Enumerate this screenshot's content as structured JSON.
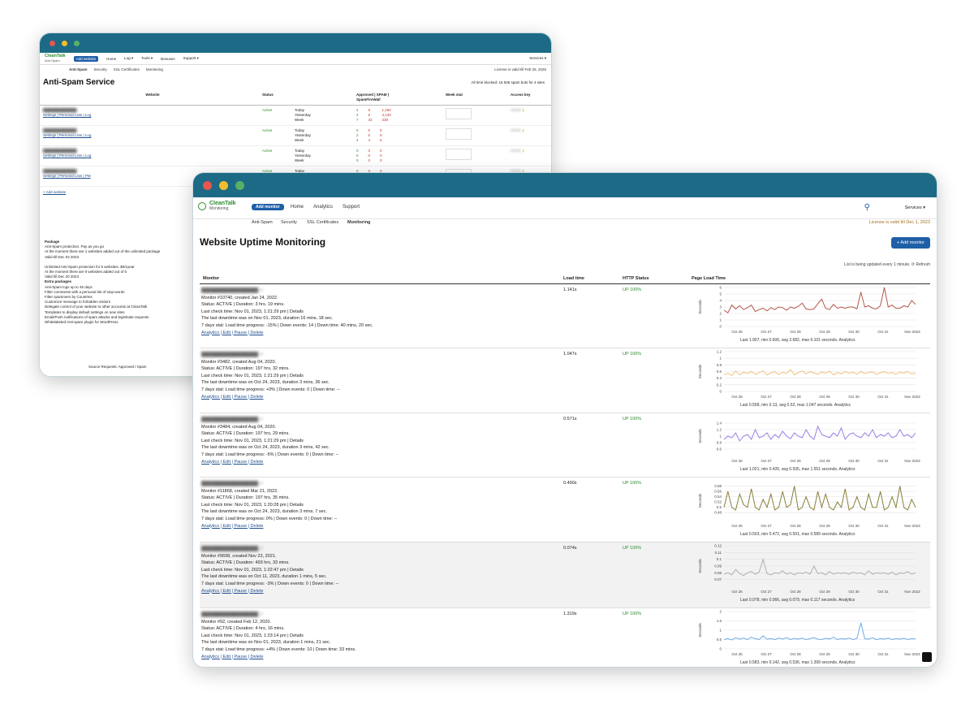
{
  "back_window": {
    "logo": "CleanTalk",
    "logo_sub": "Anti-Spam",
    "add_button": "Add website",
    "nav": [
      "Home",
      "Log ▾",
      "Tools ▾",
      "Bonuses",
      "Support ▾"
    ],
    "services": "Services ▾",
    "subnav": [
      "Anti-Spam",
      "Security",
      "SSL Certificates",
      "Monitoring"
    ],
    "license": "License is valid till Feb 25, 2025",
    "title": "Anti-Spam Service",
    "stat": "All time blocked: 16 536 spam bots for 4 sites",
    "columns": [
      "Website",
      "Status",
      "",
      "Approved",
      "SPAM",
      "SpamFireWall",
      "Week stat",
      "Access key"
    ],
    "rows": [
      {
        "site": "",
        "status": "Active",
        "periods": [
          "Today",
          "Yesterday",
          "Week"
        ],
        "approved": [
          "4",
          "2",
          "7"
        ],
        "spam": [
          "5",
          "5",
          "33"
        ],
        "sfw": [
          "1,260",
          "3,130",
          "338"
        ],
        "links": "Settings | Personal Lists | Log"
      },
      {
        "site": "",
        "status": "Active",
        "periods": [
          "Today",
          "Yesterday",
          "Week"
        ],
        "approved": [
          "0",
          "2",
          "4"
        ],
        "spam": [
          "0",
          "6",
          "4"
        ],
        "sfw": [
          "0",
          "9",
          "6"
        ],
        "links": "Settings | Personal Lists | Log"
      },
      {
        "site": "",
        "status": "Active",
        "periods": [
          "Today",
          "Yesterday",
          "Week"
        ],
        "approved": [
          "0",
          "0",
          "0"
        ],
        "spam": [
          "0",
          "0",
          "0"
        ],
        "sfw": [
          "0",
          "0",
          "0"
        ],
        "links": "Settings | Personal Lists | Log"
      },
      {
        "site": "",
        "status": "Active",
        "periods": [
          "Today",
          "Yesterday",
          "Week"
        ],
        "approved": [
          "0",
          "0",
          "0"
        ],
        "spam": [
          "0",
          "0",
          "0"
        ],
        "sfw": [
          "0",
          "0",
          "0"
        ],
        "links": "Settings | Personal Lists | PM"
      }
    ],
    "add_site": "+ Add website",
    "package_title": "Package",
    "package_lines": [
      "Anti-Spam protection. Pay as you go",
      "At the moment there are 1 websites added out of the unlimited package",
      "Valid till Dec 03 2023",
      "",
      "Unlimited Anti-Spam protection for 5 websites. $0/1year",
      "At the moment there are 0 websites added out of 5",
      "Valid till Dec 20 2023"
    ],
    "extra_title": "Extra packages",
    "extra_lines": [
      "Anti-Spam logs up to 45 days",
      "Filter comments with a personal list of stop-words",
      "Filter spammers by Countries",
      "Customize message to forbidden visitors",
      "Delegate control of your website to other accounts at CleanTalk",
      "Templates to display default settings on new sites",
      "Email/Push notifications of spam attacks and legitimate requests",
      "Whitelabeled Anti-spam plugin for WordPress"
    ],
    "footer": "Source Requests: Approved / Spam"
  },
  "front_window": {
    "logo": "CleanTalk",
    "logo_sub": "Monitoring",
    "add_button": "Add monitor",
    "nav": [
      "Home",
      "Analytics",
      "Support"
    ],
    "services": "Services ▾",
    "subnav": [
      "Anti-Spam",
      "Security",
      "SSL Certificates",
      "Monitoring"
    ],
    "license": "License is valid till Dec 1, 2023",
    "title": "Website Uptime Monitoring",
    "add_monitor": "+ Add monitor",
    "updated": "List is being updated every 1 minute. ⟳ Refresh",
    "columns": {
      "monitor": "Monitor",
      "load": "Load time",
      "http": "HTTP Status",
      "plt": "Page Load Time"
    },
    "colors": {
      "c1": "#b5574a",
      "c2": "#f2c07a",
      "c3": "#9d7ee6",
      "c4": "#8a7f3a",
      "c5": "#b0b0b0",
      "c6": "#6aace6",
      "accent": "#1c6a85"
    },
    "monitors": [
      {
        "url": "",
        "created": "Monitor #10740, created Jan 24, 2022.",
        "status": "Status: ACTIVE | Duration: 3 hrs, 19 mins.",
        "last": "Last check time: Nov 01, 2023, 1:21:29 pm | Details",
        "downtime": "The last downtime was on Nov 01, 2023, duration 16 mins, 18 sec.",
        "stat": "7 days stat: Load time progress: -15% | Down events: 14 | Down time: 40 mins, 20 sec.",
        "links": "Analytics | Edit | Pause | Delete",
        "load": "1.141s",
        "http": "UP 100%",
        "summary": "Last 1.907, min 0.606, avg 2.682, max 6.101 seconds. Analytics"
      },
      {
        "url": "",
        "created": "Monitor #3482, created Aug 04, 2020.",
        "status": "Status: ACTIVE | Duration: 197 hrs, 32 mins.",
        "last": "Last check time: Nov 01, 2023, 1:21:29 pm | Details",
        "downtime": "The last downtime was on Oct 24, 2023, duration 3 mins, 36 sec.",
        "stat": "7 days stat: Load time progress: +0% | Down events: 0 | Down time: --",
        "links": "Analytics | Edit | Pause | Delete",
        "load": "1.047s",
        "http": "UP 100%",
        "summary": "Last 0.558, min 0.13, avg 0.52, max 1.047 seconds. Analytics"
      },
      {
        "url": "",
        "created": "Monitor #3484, created Aug 04, 2020.",
        "status": "Status: ACTIVE | Duration: 197 hrs, 29 mins.",
        "last": "Last check time: Nov 01, 2023, 1:21:29 pm | Details",
        "downtime": "The last downtime was on Oct 24, 2023, duration 3 mins, 42 sec.",
        "stat": "7 days stat: Load time progress: -5% | Down events: 0 | Down time: --",
        "links": "Analytics | Edit | Pause | Delete",
        "load": "0.571s",
        "http": "UP 100%",
        "summary": "Last 1.021, min 0.426, avg 0.935, max 1.551 seconds. Analytics"
      },
      {
        "url": "",
        "created": "Monitor #11868, created Mar 21, 2022.",
        "status": "Status: ACTIVE | Duration: 197 hrs, 35 mins.",
        "last": "Last check time: Nov 01, 2023, 1:20:28 pm | Details",
        "downtime": "The last downtime was on Oct 24, 2023, duration 3 mins, 7 sec.",
        "stat": "7 days stat: Load time progress: 0% | Down events: 0 | Down time: --",
        "links": "Analytics | Edit | Pause | Delete",
        "load": "0.490s",
        "http": "UP 100%",
        "summary": "Last 0.503, min 0.472, avg 0.501, max 0.589 seconds. Analytics"
      },
      {
        "url": "",
        "created": "Monitor #9698, created Nov 23, 2021.",
        "status": "Status: ACTIVE | Duration: 493 hrs, 33 mins.",
        "last": "Last check time: Nov 01, 2023, 1:22:47 pm | Details",
        "downtime": "The last downtime was on Oct 11, 2023, duration 1 mins, 5 sec.",
        "stat": "7 days stat: Load time progress: -3% | Down events: 0 | Down time: --",
        "links": "Analytics | Edit | Pause | Delete",
        "load": "0.074s",
        "http": "UP 100%",
        "summary": "Last 0.078, min 0.066, avg 0.079, max 0.117 seconds. Analytics"
      },
      {
        "url": "",
        "created": "Monitor #92, created Feb 12, 2020.",
        "status": "Status: ACTIVE | Duration: 4 hrs, 16 mins.",
        "last": "Last check time: Nov 01, 2023, 1:23:14 pm | Details",
        "downtime": "The last downtime was on Nov 01, 2023, duration 1 mins, 21 sec.",
        "stat": "7 days stat: Load time progress: +4% | Down events: 10 | Down time: 33 mins.",
        "links": "Analytics | Edit | Pause | Delete",
        "load": "1.319s",
        "http": "UP 100%",
        "summary": "Last 0.583, min 0.142, avg 0.536, max 1.399 seconds. Analytics"
      }
    ],
    "chart_ticks_x": [
      "Oct 26",
      "Oct 27",
      "Oct 28",
      "Oct 29",
      "Oct 30",
      "Oct 31",
      "Nov 2023"
    ],
    "chart_ylabel": "Seconds"
  },
  "chart_data": [
    {
      "type": "line",
      "ylabel": "Seconds",
      "ylim": [
        0,
        6
      ],
      "yticks": [
        "0",
        "1",
        "2",
        "3",
        "4",
        "5",
        "6"
      ],
      "series": [
        {
          "values": [
            2.5,
            2.1,
            3.3,
            2.7,
            3.2,
            2.6,
            2.9,
            3.3,
            2.3,
            2.6,
            2.8,
            2.4,
            2.9,
            2.6,
            3.0,
            2.9,
            2.5,
            3.0,
            2.8,
            3.1,
            3.6,
            2.7,
            2.6,
            2.7,
            3.5,
            4.2,
            2.8,
            2.6,
            3.4,
            2.8,
            3.0,
            2.8,
            3.0,
            3.0,
            2.7,
            5.3,
            3.0,
            3.2,
            2.8,
            2.7,
            3.2,
            6.1,
            3.0,
            3.3,
            2.8,
            2.8,
            3.2,
            3.0,
            4.0,
            3.4
          ]
        }
      ]
    },
    {
      "type": "line",
      "ylabel": "Seconds",
      "ylim": [
        0,
        1.2
      ],
      "yticks": [
        "0",
        "0.2",
        "0.4",
        "0.6",
        "0.8",
        "1",
        "1.2"
      ],
      "series": [
        {
          "values": [
            0.5,
            0.55,
            0.48,
            0.62,
            0.5,
            0.58,
            0.54,
            0.6,
            0.52,
            0.57,
            0.62,
            0.5,
            0.56,
            0.6,
            0.51,
            0.58,
            0.54,
            0.66,
            0.5,
            0.57,
            0.62,
            0.53,
            0.6,
            0.56,
            0.52,
            0.59,
            0.55,
            0.61,
            0.5,
            0.57,
            0.53,
            0.6,
            0.55,
            0.58,
            0.52,
            0.6,
            0.54,
            0.57,
            0.59,
            0.52,
            0.56,
            0.6,
            0.54,
            0.57,
            0.52,
            0.58,
            0.55,
            0.6,
            0.53,
            0.56
          ]
        }
      ]
    },
    {
      "type": "line",
      "ylabel": "Seconds",
      "ylim": [
        0.4,
        1.6
      ],
      "yticks": [
        "0.6",
        "0.8",
        "1",
        "1.2",
        "1.4"
      ],
      "series": [
        {
          "values": [
            0.9,
            1.0,
            0.95,
            1.1,
            0.85,
            1.0,
            1.05,
            0.9,
            1.2,
            0.95,
            1.0,
            1.1,
            0.9,
            1.05,
            0.95,
            1.15,
            1.0,
            0.92,
            1.1,
            1.0,
            0.95,
            1.2,
            1.0,
            0.9,
            1.3,
            1.05,
            1.0,
            0.95,
            1.1,
            1.0,
            1.25,
            0.9,
            1.05,
            1.1,
            1.0,
            0.95,
            1.1,
            1.0,
            1.2,
            0.95,
            1.05,
            1.0,
            1.1,
            0.95,
            1.0,
            1.2,
            1.0,
            1.05,
            0.95,
            1.1
          ]
        }
      ]
    },
    {
      "type": "line",
      "ylabel": "Seconds",
      "ylim": [
        0.45,
        0.6
      ],
      "yticks": [
        "0.48",
        "0.5",
        "0.52",
        "0.54",
        "0.56",
        "0.58"
      ],
      "series": [
        {
          "values": [
            0.5,
            0.56,
            0.5,
            0.49,
            0.55,
            0.51,
            0.5,
            0.57,
            0.5,
            0.49,
            0.53,
            0.5,
            0.55,
            0.49,
            0.5,
            0.56,
            0.5,
            0.51,
            0.58,
            0.49,
            0.5,
            0.54,
            0.5,
            0.49,
            0.56,
            0.5,
            0.55,
            0.5,
            0.49,
            0.52,
            0.5,
            0.57,
            0.49,
            0.5,
            0.54,
            0.5,
            0.49,
            0.55,
            0.5,
            0.5,
            0.56,
            0.49,
            0.5,
            0.54,
            0.5,
            0.58,
            0.5,
            0.49,
            0.53,
            0.5
          ]
        }
      ]
    },
    {
      "type": "line",
      "ylabel": "Seconds",
      "ylim": [
        0.06,
        0.12
      ],
      "yticks": [
        "0.07",
        "0.08",
        "0.09",
        "0.1",
        "0.11",
        "0.12"
      ],
      "series": [
        {
          "values": [
            0.078,
            0.08,
            0.077,
            0.085,
            0.079,
            0.076,
            0.08,
            0.082,
            0.078,
            0.081,
            0.1,
            0.079,
            0.077,
            0.08,
            0.079,
            0.083,
            0.078,
            0.08,
            0.077,
            0.08,
            0.079,
            0.081,
            0.078,
            0.09,
            0.079,
            0.08,
            0.077,
            0.082,
            0.078,
            0.08,
            0.079,
            0.08,
            0.078,
            0.081,
            0.079,
            0.08,
            0.077,
            0.083,
            0.078,
            0.08,
            0.079,
            0.08,
            0.078,
            0.081,
            0.077,
            0.08,
            0.079,
            0.082,
            0.078,
            0.08
          ]
        }
      ]
    },
    {
      "type": "line",
      "ylabel": "Seconds",
      "ylim": [
        0,
        2
      ],
      "yticks": [
        "0",
        "0.5",
        "1",
        "1.5",
        "2"
      ],
      "series": [
        {
          "values": [
            0.5,
            0.55,
            0.48,
            0.6,
            0.52,
            0.58,
            0.5,
            0.62,
            0.55,
            0.5,
            0.7,
            0.52,
            0.55,
            0.5,
            0.58,
            0.53,
            0.6,
            0.5,
            0.56,
            0.52,
            0.58,
            0.5,
            0.55,
            0.6,
            0.52,
            0.5,
            0.57,
            0.53,
            0.62,
            0.5,
            0.55,
            0.52,
            0.58,
            0.5,
            0.56,
            1.4,
            0.55,
            0.52,
            0.6,
            0.5,
            0.55,
            0.52,
            0.58,
            0.5,
            0.55,
            0.52,
            0.57,
            0.5,
            0.55,
            0.53
          ]
        }
      ]
    }
  ]
}
